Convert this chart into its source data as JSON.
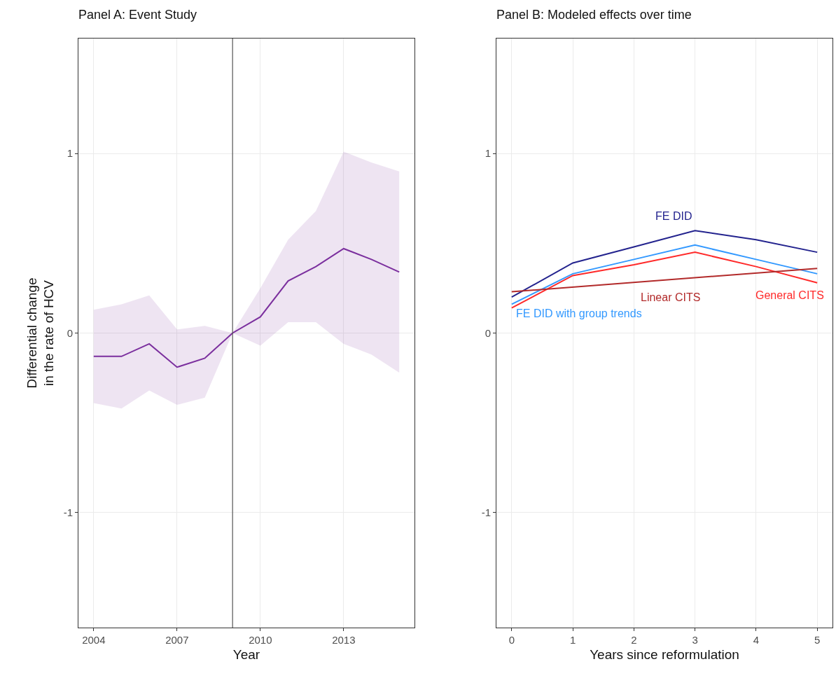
{
  "chart_data": [
    {
      "type": "line",
      "title": "Panel A: Event Study",
      "xlabel": "Year",
      "ylabel": "Differential change\nin the rate of HCV",
      "x": [
        2004,
        2005,
        2006,
        2007,
        2008,
        2009,
        2010,
        2011,
        2012,
        2013,
        2014,
        2015
      ],
      "series": [
        {
          "color": "#7b2f9e",
          "values": [
            -0.13,
            -0.13,
            -0.06,
            -0.19,
            -0.14,
            0,
            0.09,
            0.29,
            0.37,
            0.47,
            0.41,
            0.34
          ],
          "lower": [
            -0.39,
            -0.42,
            -0.32,
            -0.4,
            -0.36,
            0,
            -0.07,
            0.06,
            0.06,
            -0.06,
            -0.12,
            -0.22
          ],
          "upper": [
            0.13,
            0.16,
            0.21,
            0.02,
            0.04,
            0,
            0.25,
            0.52,
            0.68,
            1.01,
            0.95,
            0.9
          ]
        }
      ],
      "xlim": [
        2003.45,
        2015.55
      ],
      "xticks": [
        2004,
        2007,
        2010,
        2013
      ],
      "ylim": [
        -1.64,
        1.64
      ],
      "yticks": [
        -1,
        0,
        1
      ],
      "ref_lines": [
        {
          "axis": "x",
          "value": 2009,
          "color": "#555555"
        }
      ],
      "grid": true,
      "legend": false
    },
    {
      "type": "line",
      "title": "Panel B: Modeled effects over time",
      "xlabel": "Years since reformulation",
      "x": [
        0,
        1,
        2,
        3,
        4,
        5
      ],
      "series": [
        {
          "name": "FE DID",
          "color": "#23238e",
          "values": [
            0.2,
            0.39,
            0.48,
            0.57,
            0.52,
            0.45
          ]
        },
        {
          "name": "FE DID with group trends",
          "color": "#3399ff",
          "values": [
            0.16,
            0.33,
            0.41,
            0.49,
            0.41,
            0.33
          ]
        },
        {
          "name": "General CITS",
          "color": "#ff2a2a",
          "values": [
            0.14,
            0.32,
            0.38,
            0.45,
            0.37,
            0.28
          ]
        },
        {
          "name": "Linear CITS",
          "color": "#b22a2a",
          "x": [
            0,
            5
          ],
          "values": [
            0.23,
            0.36
          ]
        }
      ],
      "xlim": [
        -0.25,
        5.25
      ],
      "xticks": [
        0,
        1,
        2,
        3,
        4,
        5
      ],
      "ylim": [
        -1.64,
        1.64
      ],
      "yticks": [
        -1,
        0,
        1
      ],
      "grid": true,
      "legend": false
    }
  ]
}
